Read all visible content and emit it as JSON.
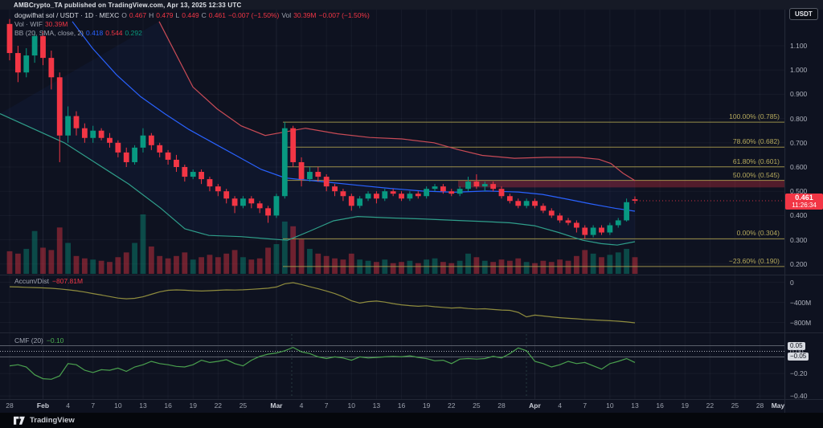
{
  "header": {
    "published_line": "AMBCrypto_TA published on TradingView.com, Apr 13, 2025 12:33 UTC"
  },
  "legend": {
    "symbol": "dogwifhat sol / USDT · 1D · MEXC",
    "ohlc": {
      "o_label": "O",
      "o": "0.467",
      "h_label": "H",
      "h": "0.479",
      "l_label": "L",
      "l": "0.449",
      "c_label": "C",
      "c": "0.461",
      "change": "−0.007 (−1.50%)",
      "vol_label": "Vol",
      "vol": "30.39M",
      "change2": "−0.007 (−1.50%)"
    },
    "vol_row": {
      "label": "Vol · WIF",
      "value": "30.39M"
    },
    "bb_row": {
      "label": "BB (20, SMA, close, 2)",
      "basis": "0.418",
      "upper": "0.544",
      "lower": "0.292"
    }
  },
  "panes": {
    "ad": {
      "title": "Accum/Dist",
      "value": "−807.81M"
    },
    "cmf": {
      "title": "CMF (20)",
      "value": "−0.10"
    }
  },
  "axis": {
    "currency": "USDT",
    "price_tag": {
      "price": "0.461",
      "countdown": "11:26:34"
    },
    "price_ticks": [
      {
        "label": "1.100",
        "p": 1.1
      },
      {
        "label": "1.000",
        "p": 1.0
      },
      {
        "label": "0.900",
        "p": 0.9
      },
      {
        "label": "0.800",
        "p": 0.8
      },
      {
        "label": "0.700",
        "p": 0.7
      },
      {
        "label": "0.600",
        "p": 0.6
      },
      {
        "label": "0.500",
        "p": 0.5
      },
      {
        "label": "0.400",
        "p": 0.4
      },
      {
        "label": "0.300",
        "p": 0.3
      },
      {
        "label": "0.200",
        "p": 0.2
      }
    ],
    "ad_ticks": [
      {
        "label": "0",
        "v": 0
      },
      {
        "label": "−400M",
        "v": -400
      },
      {
        "label": "−800M",
        "v": -800
      }
    ],
    "cmf_ticks": [
      {
        "label": "0.05",
        "v": 0.05,
        "badge": true
      },
      {
        "label": "0.00",
        "v": 0,
        "badge": false
      },
      {
        "label": "−0.05",
        "v": -0.05,
        "badge": true
      },
      {
        "label": "−0.20",
        "v": -0.2,
        "badge": false
      },
      {
        "label": "−0.40",
        "v": -0.4,
        "badge": false
      }
    ],
    "time_labels": [
      {
        "label": "28",
        "i": 0
      },
      {
        "label": "Feb",
        "i": 4
      },
      {
        "label": "4",
        "i": 7
      },
      {
        "label": "7",
        "i": 10
      },
      {
        "label": "10",
        "i": 13
      },
      {
        "label": "13",
        "i": 16
      },
      {
        "label": "16",
        "i": 19
      },
      {
        "label": "19",
        "i": 22
      },
      {
        "label": "22",
        "i": 25
      },
      {
        "label": "25",
        "i": 28
      },
      {
        "label": "Mar",
        "i": 32
      },
      {
        "label": "4",
        "i": 35
      },
      {
        "label": "7",
        "i": 38
      },
      {
        "label": "10",
        "i": 41
      },
      {
        "label": "13",
        "i": 44
      },
      {
        "label": "16",
        "i": 47
      },
      {
        "label": "19",
        "i": 50
      },
      {
        "label": "22",
        "i": 53
      },
      {
        "label": "25",
        "i": 56
      },
      {
        "label": "28",
        "i": 59
      },
      {
        "label": "Apr",
        "i": 63
      },
      {
        "label": "4",
        "i": 66
      },
      {
        "label": "7",
        "i": 69
      },
      {
        "label": "10",
        "i": 72
      },
      {
        "label": "13",
        "i": 75
      },
      {
        "label": "16",
        "i": 78
      },
      {
        "label": "19",
        "i": 81
      },
      {
        "label": "22",
        "i": 84
      },
      {
        "label": "25",
        "i": 87
      },
      {
        "label": "28",
        "i": 90
      },
      {
        "label": "May",
        "i": 93
      }
    ]
  },
  "footer": {
    "brand": "TradingView"
  },
  "colors": {
    "up": "#089981",
    "down": "#f23645",
    "bb_basis": "#2962ff",
    "bb_upper": "#c94b56",
    "bb_lower": "#2f9e8a",
    "fib": "#a99b4e",
    "ad_line": "#8f8c3e",
    "cmf_line": "#4aa04e",
    "grid": "rgba(140,150,170,0.07)",
    "grid_month": "rgba(140,150,170,0.13)",
    "separator": "#232836",
    "zone_fill": "rgba(242,54,69,0.30)"
  },
  "chart_data": {
    "type": "candlestick",
    "title": "dogwifhat sol / USDT · 1D · MEXC",
    "interval": "1D",
    "start_date": "2025-01-28",
    "end_date": "2025-04-13",
    "visible_price_range": [
      0.15,
      1.18
    ],
    "last": {
      "o": 0.467,
      "h": 0.479,
      "l": 0.449,
      "c": 0.461,
      "change": "-1.50%",
      "volume": "30.39M"
    },
    "fib_levels": [
      {
        "label": "100.00% (0.785)",
        "pct": 100.0,
        "price": 0.785
      },
      {
        "label": "78.60% (0.682)",
        "pct": 78.6,
        "price": 0.682
      },
      {
        "label": "61.80% (0.601)",
        "pct": 61.8,
        "price": 0.601
      },
      {
        "label": "50.00% (0.545)",
        "pct": 50.0,
        "price": 0.545
      },
      {
        "label": "0.00% (0.304)",
        "pct": 0.0,
        "price": 0.304
      },
      {
        "label": "−23.60% (0.190)",
        "pct": -23.6,
        "price": 0.19
      }
    ],
    "supply_zone": {
      "top": 0.546,
      "bottom": 0.516
    },
    "bb_current": {
      "basis": 0.418,
      "upper": 0.544,
      "lower": 0.292
    },
    "candles": [
      [
        1.19,
        1.21,
        1.04,
        1.07,
        0.38
      ],
      [
        1.07,
        1.1,
        0.95,
        0.99,
        0.34
      ],
      [
        0.99,
        1.09,
        0.97,
        1.06,
        0.42
      ],
      [
        1.06,
        1.16,
        1.03,
        1.14,
        0.72
      ],
      [
        1.14,
        1.16,
        1.02,
        1.05,
        0.44
      ],
      [
        1.05,
        1.08,
        0.92,
        0.97,
        0.4
      ],
      [
        0.97,
        0.99,
        0.62,
        0.73,
        0.78
      ],
      [
        0.73,
        0.85,
        0.7,
        0.81,
        0.52
      ],
      [
        0.81,
        0.83,
        0.73,
        0.76,
        0.3
      ],
      [
        0.76,
        0.78,
        0.7,
        0.72,
        0.26
      ],
      [
        0.72,
        0.77,
        0.7,
        0.75,
        0.24
      ],
      [
        0.75,
        0.76,
        0.71,
        0.72,
        0.22
      ],
      [
        0.72,
        0.74,
        0.68,
        0.7,
        0.2
      ],
      [
        0.7,
        0.71,
        0.64,
        0.66,
        0.28
      ],
      [
        0.66,
        0.68,
        0.6,
        0.62,
        0.36
      ],
      [
        0.62,
        0.69,
        0.61,
        0.68,
        0.52
      ],
      [
        0.68,
        0.76,
        0.66,
        0.73,
        1.0
      ],
      [
        0.73,
        0.74,
        0.67,
        0.69,
        0.46
      ],
      [
        0.69,
        0.7,
        0.64,
        0.66,
        0.3
      ],
      [
        0.66,
        0.67,
        0.61,
        0.63,
        0.26
      ],
      [
        0.63,
        0.65,
        0.58,
        0.6,
        0.3
      ],
      [
        0.6,
        0.61,
        0.54,
        0.56,
        0.36
      ],
      [
        0.56,
        0.59,
        0.55,
        0.58,
        0.24
      ],
      [
        0.58,
        0.59,
        0.53,
        0.55,
        0.28
      ],
      [
        0.55,
        0.56,
        0.5,
        0.52,
        0.32
      ],
      [
        0.52,
        0.53,
        0.48,
        0.5,
        0.28
      ],
      [
        0.5,
        0.51,
        0.45,
        0.47,
        0.34
      ],
      [
        0.47,
        0.48,
        0.41,
        0.44,
        0.4
      ],
      [
        0.44,
        0.48,
        0.43,
        0.47,
        0.28
      ],
      [
        0.47,
        0.48,
        0.43,
        0.45,
        0.24
      ],
      [
        0.45,
        0.46,
        0.41,
        0.43,
        0.26
      ],
      [
        0.43,
        0.44,
        0.37,
        0.4,
        0.44
      ],
      [
        0.4,
        0.49,
        0.39,
        0.48,
        0.5
      ],
      [
        0.48,
        0.785,
        0.47,
        0.76,
        0.88
      ],
      [
        0.76,
        0.77,
        0.6,
        0.62,
        0.8
      ],
      [
        0.62,
        0.64,
        0.52,
        0.55,
        0.58
      ],
      [
        0.55,
        0.6,
        0.54,
        0.58,
        0.42
      ],
      [
        0.58,
        0.6,
        0.54,
        0.56,
        0.34
      ],
      [
        0.56,
        0.57,
        0.5,
        0.52,
        0.3
      ],
      [
        0.52,
        0.53,
        0.48,
        0.5,
        0.26
      ],
      [
        0.5,
        0.51,
        0.46,
        0.48,
        0.24
      ],
      [
        0.48,
        0.49,
        0.42,
        0.44,
        0.34
      ],
      [
        0.44,
        0.48,
        0.43,
        0.47,
        0.24
      ],
      [
        0.47,
        0.5,
        0.46,
        0.49,
        0.22
      ],
      [
        0.49,
        0.5,
        0.45,
        0.47,
        0.2
      ],
      [
        0.47,
        0.51,
        0.46,
        0.5,
        0.24
      ],
      [
        0.5,
        0.51,
        0.48,
        0.49,
        0.18
      ],
      [
        0.49,
        0.5,
        0.46,
        0.47,
        0.2
      ],
      [
        0.47,
        0.5,
        0.46,
        0.49,
        0.22
      ],
      [
        0.49,
        0.5,
        0.47,
        0.48,
        0.18
      ],
      [
        0.48,
        0.52,
        0.47,
        0.51,
        0.24
      ],
      [
        0.51,
        0.53,
        0.5,
        0.52,
        0.26
      ],
      [
        0.52,
        0.53,
        0.49,
        0.5,
        0.2
      ],
      [
        0.5,
        0.51,
        0.48,
        0.49,
        0.18
      ],
      [
        0.49,
        0.52,
        0.48,
        0.51,
        0.22
      ],
      [
        0.51,
        0.56,
        0.5,
        0.54,
        0.34
      ],
      [
        0.54,
        0.57,
        0.51,
        0.52,
        0.28
      ],
      [
        0.52,
        0.54,
        0.5,
        0.53,
        0.22
      ],
      [
        0.53,
        0.54,
        0.5,
        0.51,
        0.2
      ],
      [
        0.51,
        0.52,
        0.47,
        0.48,
        0.24
      ],
      [
        0.48,
        0.49,
        0.45,
        0.46,
        0.22
      ],
      [
        0.46,
        0.47,
        0.43,
        0.44,
        0.26
      ],
      [
        0.44,
        0.47,
        0.43,
        0.46,
        0.2
      ],
      [
        0.46,
        0.47,
        0.43,
        0.44,
        0.18
      ],
      [
        0.44,
        0.45,
        0.41,
        0.42,
        0.22
      ],
      [
        0.42,
        0.43,
        0.39,
        0.4,
        0.2
      ],
      [
        0.4,
        0.41,
        0.37,
        0.38,
        0.24
      ],
      [
        0.38,
        0.39,
        0.36,
        0.37,
        0.22
      ],
      [
        0.37,
        0.38,
        0.33,
        0.35,
        0.3
      ],
      [
        0.35,
        0.36,
        0.304,
        0.32,
        0.4
      ],
      [
        0.32,
        0.36,
        0.31,
        0.35,
        0.34
      ],
      [
        0.35,
        0.36,
        0.32,
        0.33,
        0.28
      ],
      [
        0.33,
        0.37,
        0.32,
        0.36,
        0.32
      ],
      [
        0.36,
        0.39,
        0.35,
        0.38,
        0.36
      ],
      [
        0.38,
        0.47,
        0.375,
        0.455,
        0.42
      ],
      [
        0.467,
        0.479,
        0.449,
        0.461,
        0.28
      ]
    ],
    "bb_paths": {
      "basis": [
        [
          90,
          1.2
        ],
        [
          115,
          1.09
        ],
        [
          145,
          0.98
        ],
        [
          175,
          0.89
        ],
        [
          205,
          0.82
        ],
        [
          235,
          0.755
        ],
        [
          265,
          0.7
        ],
        [
          295,
          0.645
        ],
        [
          325,
          0.59
        ],
        [
          355,
          0.555
        ],
        [
          385,
          0.545
        ],
        [
          415,
          0.535
        ],
        [
          445,
          0.525
        ],
        [
          485,
          0.512
        ],
        [
          525,
          0.501
        ],
        [
          565,
          0.496
        ],
        [
          605,
          0.501
        ],
        [
          645,
          0.497
        ],
        [
          675,
          0.487
        ],
        [
          705,
          0.468
        ],
        [
          735,
          0.448
        ],
        [
          765,
          0.43
        ],
        [
          790,
          0.418
        ]
      ],
      "upper": [
        [
          198,
          1.2
        ],
        [
          240,
          0.93
        ],
        [
          270,
          0.84
        ],
        [
          300,
          0.77
        ],
        [
          330,
          0.73
        ],
        [
          355,
          0.745
        ],
        [
          380,
          0.76
        ],
        [
          420,
          0.737
        ],
        [
          460,
          0.722
        ],
        [
          500,
          0.716
        ],
        [
          540,
          0.7
        ],
        [
          570,
          0.672
        ],
        [
          600,
          0.648
        ],
        [
          640,
          0.636
        ],
        [
          680,
          0.64
        ],
        [
          720,
          0.64
        ],
        [
          745,
          0.632
        ],
        [
          760,
          0.615
        ],
        [
          775,
          0.575
        ],
        [
          790,
          0.544
        ]
      ],
      "lower": [
        [
          0,
          0.82
        ],
        [
          40,
          0.76
        ],
        [
          80,
          0.7
        ],
        [
          120,
          0.615
        ],
        [
          160,
          0.53
        ],
        [
          200,
          0.43
        ],
        [
          230,
          0.345
        ],
        [
          260,
          0.318
        ],
        [
          300,
          0.313
        ],
        [
          330,
          0.305
        ],
        [
          358,
          0.298
        ],
        [
          385,
          0.335
        ],
        [
          415,
          0.378
        ],
        [
          445,
          0.396
        ],
        [
          485,
          0.39
        ],
        [
          525,
          0.386
        ],
        [
          565,
          0.38
        ],
        [
          605,
          0.375
        ],
        [
          635,
          0.37
        ],
        [
          665,
          0.358
        ],
        [
          695,
          0.33
        ],
        [
          725,
          0.298
        ],
        [
          748,
          0.284
        ],
        [
          768,
          0.278
        ],
        [
          790,
          0.292
        ]
      ]
    },
    "accum_dist_m": [
      -90,
      -95,
      -100,
      -105,
      -112,
      -120,
      -132,
      -150,
      -170,
      -195,
      -225,
      -255,
      -285,
      -315,
      -330,
      -320,
      -290,
      -240,
      -190,
      -160,
      -152,
      -158,
      -168,
      -175,
      -168,
      -160,
      -152,
      -155,
      -150,
      -140,
      -130,
      -118,
      -95,
      -30,
      -8,
      -45,
      -90,
      -130,
      -175,
      -225,
      -290,
      -370,
      -415,
      -385,
      -375,
      -395,
      -425,
      -450,
      -465,
      -478,
      -468,
      -488,
      -500,
      -514,
      -505,
      -523,
      -533,
      -528,
      -543,
      -553,
      -560,
      -600,
      -690,
      -655,
      -672,
      -690,
      -705,
      -718,
      -728,
      -740,
      -750,
      -758,
      -766,
      -776,
      -790,
      -807.81
    ],
    "cmf": [
      -0.13,
      -0.12,
      -0.14,
      -0.21,
      -0.245,
      -0.25,
      -0.22,
      -0.11,
      -0.12,
      -0.17,
      -0.19,
      -0.165,
      -0.17,
      -0.15,
      -0.18,
      -0.14,
      -0.12,
      -0.09,
      -0.11,
      -0.12,
      -0.135,
      -0.14,
      -0.12,
      -0.08,
      -0.1,
      -0.09,
      -0.075,
      -0.11,
      -0.13,
      -0.08,
      -0.045,
      -0.025,
      -0.015,
      0.005,
      0.035,
      -0.005,
      -0.02,
      -0.05,
      -0.065,
      -0.05,
      -0.06,
      -0.08,
      -0.05,
      -0.06,
      -0.055,
      -0.05,
      -0.045,
      -0.05,
      -0.04,
      -0.055,
      -0.065,
      -0.085,
      -0.08,
      -0.11,
      -0.07,
      -0.065,
      -0.07,
      -0.065,
      -0.045,
      -0.06,
      -0.02,
      0.03,
      0.005,
      -0.09,
      -0.11,
      -0.14,
      -0.12,
      -0.09,
      -0.11,
      -0.1,
      -0.13,
      -0.16,
      -0.11,
      -0.09,
      -0.065,
      -0.1
    ]
  }
}
